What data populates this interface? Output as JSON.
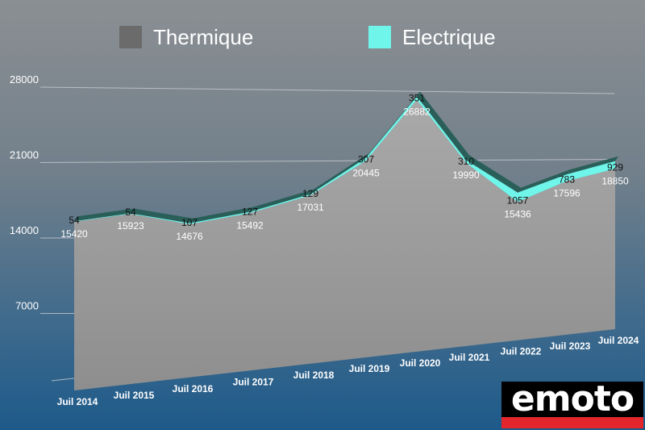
{
  "legend": {
    "thermique": {
      "label": "Thermique",
      "color": "#6b6b6b"
    },
    "electrique": {
      "label": "Electrique",
      "color": "#6ff5ea"
    }
  },
  "logo_text": "emoto",
  "chart_data": {
    "type": "area",
    "categories": [
      "Juil 2014",
      "Juil 2015",
      "Juil 2016",
      "Juil 2017",
      "Juil 2018",
      "Juil 2019",
      "Juil 2020",
      "Juil 2021",
      "Juil 2022",
      "Juil 2023",
      "Juil 2024"
    ],
    "y_ticks": [
      7000,
      14000,
      21000,
      28000
    ],
    "ylim": [
      0,
      28000
    ],
    "series": [
      {
        "name": "Thermique",
        "values": [
          15420,
          15923,
          14676,
          15492,
          17031,
          20445,
          26882,
          19990,
          15436,
          17596,
          18850
        ],
        "labels": [
          "15420",
          "15923",
          "14676",
          "15492",
          "17031",
          "20445",
          "26882",
          "19990",
          "15436",
          "17596",
          "18850"
        ]
      },
      {
        "name": "Electrique",
        "values": [
          54,
          54,
          107,
          127,
          129,
          307,
          351,
          310,
          1057,
          783,
          929
        ],
        "labels": [
          "54",
          "54",
          "107",
          "127",
          "129",
          "307",
          "351",
          "310",
          "1057",
          "783",
          "929"
        ]
      }
    ],
    "colors": {
      "thermique": "#9b9b9b",
      "electrique": "#6ff5ea",
      "side": "#2a5f59"
    },
    "grid": true,
    "legend_position": "top"
  }
}
